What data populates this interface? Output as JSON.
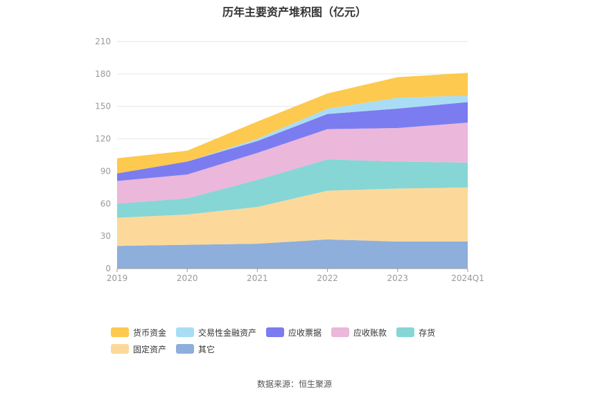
{
  "title": "历年主要资产堆积图（亿元）",
  "source": "数据来源：恒生聚源",
  "chart_data": {
    "type": "area",
    "stacked": true,
    "categories": [
      "2019",
      "2020",
      "2021",
      "2022",
      "2023",
      "2024Q1"
    ],
    "ylim": [
      0,
      210
    ],
    "yticks": [
      0,
      30,
      60,
      90,
      120,
      150,
      180,
      210
    ],
    "grid": true,
    "legend_position": "bottom",
    "series": [
      {
        "name": "其它",
        "color": "#8eaedc",
        "values": [
          21,
          22,
          23,
          27,
          25,
          25
        ]
      },
      {
        "name": "固定资产",
        "color": "#fcd99a",
        "values": [
          26,
          28,
          34,
          45,
          49,
          50
        ]
      },
      {
        "name": "存货",
        "color": "#86d6d6",
        "values": [
          13,
          15,
          25,
          29,
          25,
          23
        ]
      },
      {
        "name": "应收账款",
        "color": "#ebb7da",
        "values": [
          21,
          22,
          25,
          28,
          31,
          37
        ]
      },
      {
        "name": "应收票据",
        "color": "#7b7cf0",
        "values": [
          7,
          12,
          11,
          14,
          18,
          19
        ]
      },
      {
        "name": "交易性金融资产",
        "color": "#a9ddf5",
        "values": [
          0,
          0,
          2,
          5,
          10,
          6
        ]
      },
      {
        "name": "货币资金",
        "color": "#fdc94e",
        "values": [
          14,
          10,
          16,
          14,
          19,
          21
        ]
      }
    ],
    "legend_order": [
      "货币资金",
      "交易性金融资产",
      "应收票据",
      "应收账款",
      "存货",
      "固定资产",
      "其它"
    ]
  }
}
